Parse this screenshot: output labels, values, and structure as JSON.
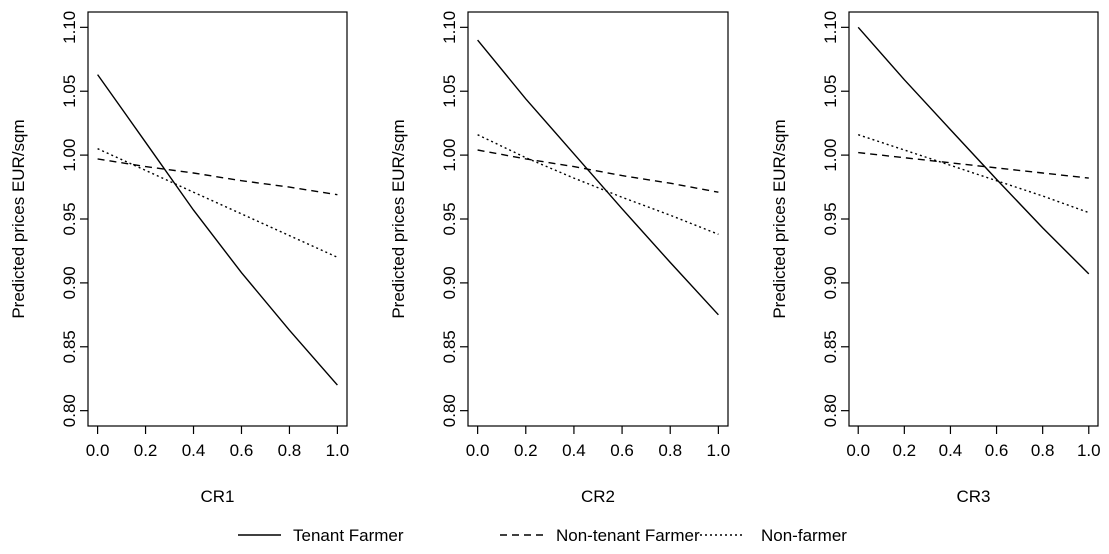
{
  "chart_data": [
    {
      "type": "line",
      "xlabel": "CR1",
      "ylabel": "Predicted prices EUR/sqm",
      "xlim": [
        0,
        1
      ],
      "ylim": [
        0.8,
        1.1
      ],
      "x_ticks": [
        "0.0",
        "0.2",
        "0.4",
        "0.6",
        "0.8",
        "1.0"
      ],
      "y_ticks": [
        "0.80",
        "0.85",
        "0.90",
        "0.95",
        "1.00",
        "1.05",
        "1.10"
      ],
      "series": [
        {
          "name": "Tenant Farmer",
          "style": "solid",
          "x": [
            0,
            0.2,
            0.4,
            0.6,
            0.8,
            1.0
          ],
          "y": [
            1.063,
            1.01,
            0.957,
            0.908,
            0.863,
            0.82
          ]
        },
        {
          "name": "Non-tenant Farmer",
          "style": "dashed",
          "x": [
            0,
            0.2,
            0.4,
            0.6,
            0.8,
            1.0
          ],
          "y": [
            0.997,
            0.991,
            0.986,
            0.98,
            0.975,
            0.969
          ]
        },
        {
          "name": "Non-farmer",
          "style": "dotted",
          "x": [
            0,
            0.2,
            0.4,
            0.6,
            0.8,
            1.0
          ],
          "y": [
            1.005,
            0.988,
            0.971,
            0.954,
            0.937,
            0.92
          ]
        }
      ]
    },
    {
      "type": "line",
      "xlabel": "CR2",
      "ylabel": "Predicted prices EUR/sqm",
      "xlim": [
        0,
        1
      ],
      "ylim": [
        0.8,
        1.1
      ],
      "x_ticks": [
        "0.0",
        "0.2",
        "0.4",
        "0.6",
        "0.8",
        "1.0"
      ],
      "y_ticks": [
        "0.80",
        "0.85",
        "0.90",
        "0.95",
        "1.00",
        "1.05",
        "1.10"
      ],
      "series": [
        {
          "name": "Tenant Farmer",
          "style": "solid",
          "x": [
            0,
            0.2,
            0.4,
            0.6,
            0.8,
            1.0
          ],
          "y": [
            1.09,
            1.044,
            1.001,
            0.958,
            0.916,
            0.875
          ]
        },
        {
          "name": "Non-tenant Farmer",
          "style": "dashed",
          "x": [
            0,
            0.2,
            0.4,
            0.6,
            0.8,
            1.0
          ],
          "y": [
            1.004,
            0.997,
            0.991,
            0.984,
            0.978,
            0.971
          ]
        },
        {
          "name": "Non-farmer",
          "style": "dotted",
          "x": [
            0,
            0.2,
            0.4,
            0.6,
            0.8,
            1.0
          ],
          "y": [
            1.016,
            0.998,
            0.982,
            0.967,
            0.953,
            0.938
          ]
        }
      ]
    },
    {
      "type": "line",
      "xlabel": "CR3",
      "ylabel": "Predicted prices EUR/sqm",
      "xlim": [
        0,
        1
      ],
      "ylim": [
        0.8,
        1.1
      ],
      "x_ticks": [
        "0.0",
        "0.2",
        "0.4",
        "0.6",
        "0.8",
        "1.0"
      ],
      "y_ticks": [
        "0.80",
        "0.85",
        "0.90",
        "0.95",
        "1.00",
        "1.05",
        "1.10"
      ],
      "series": [
        {
          "name": "Tenant Farmer",
          "style": "solid",
          "x": [
            0,
            0.2,
            0.4,
            0.6,
            0.8,
            1.0
          ],
          "y": [
            1.1,
            1.059,
            1.02,
            0.981,
            0.943,
            0.907
          ]
        },
        {
          "name": "Non-tenant Farmer",
          "style": "dashed",
          "x": [
            0,
            0.2,
            0.4,
            0.6,
            0.8,
            1.0
          ],
          "y": [
            1.002,
            0.998,
            0.994,
            0.99,
            0.986,
            0.982
          ]
        },
        {
          "name": "Non-farmer",
          "style": "dotted",
          "x": [
            0,
            0.2,
            0.4,
            0.6,
            0.8,
            1.0
          ],
          "y": [
            1.016,
            1.004,
            0.992,
            0.98,
            0.968,
            0.955
          ]
        }
      ]
    }
  ],
  "legend": {
    "placement": "bottom",
    "items": [
      {
        "label": "Tenant Farmer",
        "style": "solid"
      },
      {
        "label": "Non-tenant Farmer",
        "style": "dashed"
      },
      {
        "label": "Non-farmer",
        "style": "dotted"
      }
    ]
  }
}
